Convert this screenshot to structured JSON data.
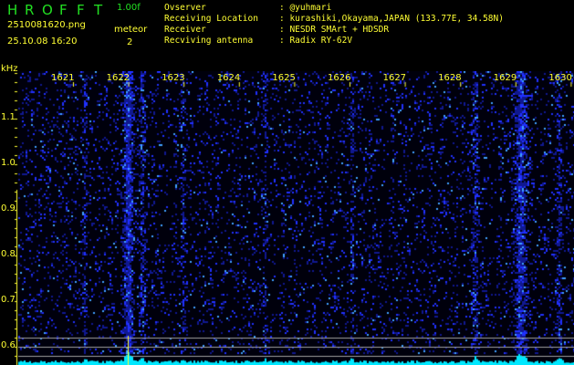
{
  "header": {
    "title_letters": [
      "H",
      "R",
      "O",
      "F",
      "F",
      "T"
    ],
    "version": "1.00f",
    "filename": "2510081620.png",
    "datetime": "25.10.08 16:20",
    "meteor_label": "meteor",
    "meteor_count": "2"
  },
  "info": [
    {
      "key": "Ovserver",
      "value": "@yuhmari"
    },
    {
      "key": "Receiving Location",
      "value": "kurashiki,Okayama,JAPAN (133.77E, 34.58N)"
    },
    {
      "key": "Receiver",
      "value": "NESDR SMArt + HDSDR"
    },
    {
      "key": "Recviving antenna",
      "value": "Radix RY-62V"
    }
  ],
  "spectrogram": {
    "y_unit": "kHz",
    "y_ticks": [
      "1.1",
      "1.0",
      "0.9",
      "0.8",
      "0.7",
      "0.6"
    ],
    "time_labels": [
      "1621",
      "1622",
      "1623",
      "1624",
      "1625",
      "1626",
      "1627",
      "1628",
      "1629",
      "1630"
    ],
    "colors": {
      "background": "#000010",
      "signal": "#2030ff",
      "spectrum": "#00e8ff",
      "text": "#ffff33",
      "title": "#22e022",
      "markers": "#a0a0a0"
    }
  }
}
